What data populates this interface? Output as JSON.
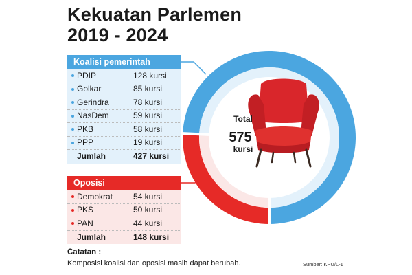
{
  "title_line1": "Kekuatan Parlemen",
  "title_line2": "2019 - 2024",
  "colors": {
    "government": "#4ba6e0",
    "government_light": "#e3f1fb",
    "opposition": "#e62a27",
    "opposition_light": "#fbe7e6",
    "chair": "#d9262b"
  },
  "chart_data": {
    "type": "pie",
    "style": "donut",
    "segments": [
      {
        "name": "Koalisi pemerintah",
        "value": 427
      },
      {
        "name": "Oposisi",
        "value": 148
      }
    ],
    "total": 575,
    "center_label": "Total",
    "center_value": "575",
    "center_unit": "kursi",
    "center_icon": "armchair-icon"
  },
  "government": {
    "header": "Koalisi pemerintah",
    "rows": [
      {
        "party": "PDIP",
        "seats": "128 kursi"
      },
      {
        "party": "Golkar",
        "seats": "85 kursi"
      },
      {
        "party": "Gerindra",
        "seats": "78 kursi"
      },
      {
        "party": "NasDem",
        "seats": "59 kursi"
      },
      {
        "party": "PKB",
        "seats": "58 kursi"
      },
      {
        "party": "PPP",
        "seats": "19 kursi"
      }
    ],
    "total_label": "Jumlah",
    "total_seats": "427 kursi"
  },
  "opposition": {
    "header": "Oposisi",
    "rows": [
      {
        "party": "Demokrat",
        "seats": "54 kursi"
      },
      {
        "party": "PKS",
        "seats": "50 kursi"
      },
      {
        "party": "PAN",
        "seats": "44 kursi"
      }
    ],
    "total_label": "Jumlah",
    "total_seats": "148 kursi"
  },
  "note": {
    "title": "Catatan :",
    "text": "Komposisi koalisi dan oposisi masih dapat berubah."
  },
  "source": "Sumber: KPU/L-1"
}
